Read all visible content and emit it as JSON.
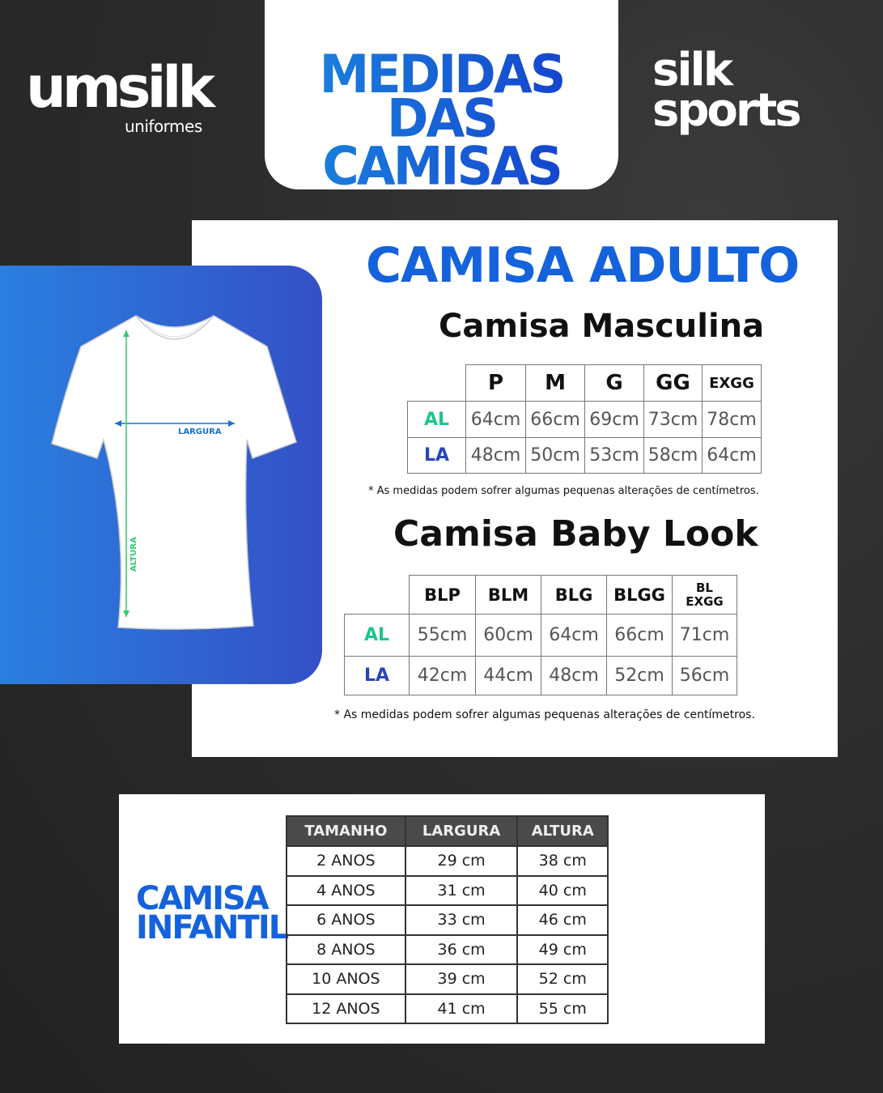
{
  "brand_left": {
    "name": "umsilk",
    "tagline": "uniformes"
  },
  "brand_right": {
    "line1": "silk",
    "line2": "sports"
  },
  "header": {
    "line1": "MEDIDAS",
    "line2": "DAS CAMISAS"
  },
  "shirt_diagram": {
    "width_label": "LARGURA",
    "height_label": "ALTURA",
    "arrow_color": "#2ecc71"
  },
  "adulto": {
    "title": "CAMISA ADULTO",
    "masculina": {
      "title": "Camisa Masculina",
      "sizes": [
        "P",
        "M",
        "G",
        "GG",
        "EXGG"
      ],
      "rows": [
        {
          "label": "AL",
          "values": [
            "64cm",
            "66cm",
            "69cm",
            "73cm",
            "78cm"
          ]
        },
        {
          "label": "LA",
          "values": [
            "48cm",
            "50cm",
            "53cm",
            "58cm",
            "64cm"
          ]
        }
      ],
      "note": "* As medidas podem sofrer algumas pequenas alterações de centímetros."
    },
    "babylook": {
      "title": "Camisa Baby Look",
      "sizes": [
        "BLP",
        "BLM",
        "BLG",
        "BLGG",
        "BL EXGG"
      ],
      "rows": [
        {
          "label": "AL",
          "values": [
            "55cm",
            "60cm",
            "64cm",
            "66cm",
            "71cm"
          ]
        },
        {
          "label": "LA",
          "values": [
            "42cm",
            "44cm",
            "48cm",
            "52cm",
            "56cm"
          ]
        }
      ],
      "note": "* As medidas podem sofrer algumas pequenas alterações de centímetros."
    }
  },
  "infantil": {
    "title_line1": "CAMISA",
    "title_line2": "INFANTIL",
    "headers": [
      "TAMANHO",
      "LARGURA",
      "ALTURA"
    ],
    "rows": [
      [
        "2 ANOS",
        "29 cm",
        "38 cm"
      ],
      [
        "4 ANOS",
        "31 cm",
        "40 cm"
      ],
      [
        "6 ANOS",
        "33 cm",
        "46 cm"
      ],
      [
        "8 ANOS",
        "36 cm",
        "49 cm"
      ],
      [
        "10 ANOS",
        "39 cm",
        "52 cm"
      ],
      [
        "12 ANOS",
        "41 cm",
        "55 cm"
      ]
    ]
  },
  "colors": {
    "accent_blue": "#1462dc",
    "al_green": "#1fc48a",
    "la_blue": "#2846b8",
    "background": "#2a2a2a"
  }
}
